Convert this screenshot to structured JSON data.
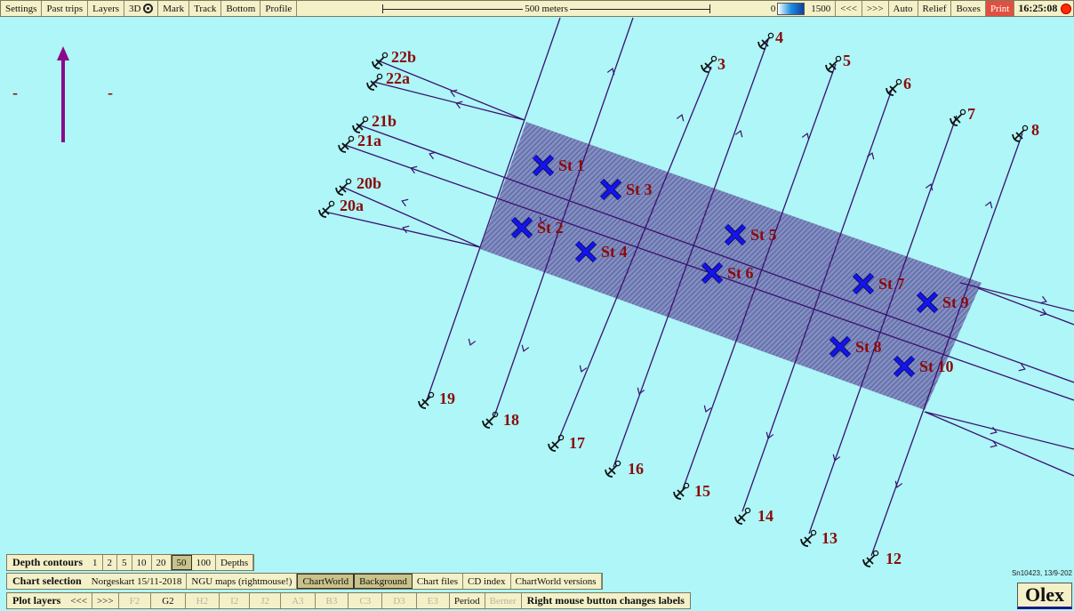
{
  "toolbar": {
    "buttons": [
      "Settings",
      "Past trips",
      "Layers",
      "3D",
      "Mark",
      "Track",
      "Bottom",
      "Profile"
    ],
    "scale_label": "500 meters",
    "depth_scale_min": "0",
    "depth_scale_max": "1500",
    "nav_prev": "<<<",
    "nav_next": ">>>",
    "auto": "Auto",
    "relief": "Relief",
    "boxes": "Boxes",
    "print": "Print",
    "clock": "16:25:08"
  },
  "depth_contours": {
    "label": "Depth contours",
    "values": [
      "1",
      "2",
      "5",
      "10",
      "20",
      "50",
      "100"
    ],
    "active": "50",
    "depths_button": "Depths"
  },
  "chart_selection": {
    "label": "Chart selection",
    "items": [
      "Norgeskart 15/11-2018",
      "NGU maps (rightmouse!)",
      "ChartWorld",
      "Background",
      "Chart files",
      "CD index",
      "ChartWorld versions"
    ],
    "active": [
      "ChartWorld",
      "Background"
    ]
  },
  "plot_layers": {
    "label": "Plot layers",
    "nav_prev": "<<<",
    "nav_next": ">>>",
    "items": [
      "F2",
      "G2",
      "H2",
      "I2",
      "J2",
      "A3",
      "B3",
      "C3",
      "D3",
      "E3"
    ],
    "period": "Period",
    "berner": "Berner",
    "hint": "Right mouse button changes labels"
  },
  "map": {
    "stations": [
      {
        "label": "St 1"
      },
      {
        "label": "St 2"
      },
      {
        "label": "St 3"
      },
      {
        "label": "St 4"
      },
      {
        "label": "St 5"
      },
      {
        "label": "St 6"
      },
      {
        "label": "St 7"
      },
      {
        "label": "St 8"
      },
      {
        "label": "St 9"
      },
      {
        "label": "St 10"
      }
    ],
    "anchors": [
      {
        "label": "22b"
      },
      {
        "label": "22a"
      },
      {
        "label": "21b"
      },
      {
        "label": "21a"
      },
      {
        "label": "20b"
      },
      {
        "label": "20a"
      },
      {
        "label": "3"
      },
      {
        "label": "4"
      },
      {
        "label": "5"
      },
      {
        "label": "6"
      },
      {
        "label": "7"
      },
      {
        "label": "8"
      },
      {
        "label": "19"
      },
      {
        "label": "18"
      },
      {
        "label": "17"
      },
      {
        "label": "16"
      },
      {
        "label": "15"
      },
      {
        "label": "14"
      },
      {
        "label": "13"
      },
      {
        "label": "12"
      }
    ],
    "north_marks": [
      "-",
      "-"
    ],
    "colors": {
      "sea": "#aef6f7",
      "track": "#3a1070",
      "area": "#5a5a98",
      "station": "#1010e0",
      "label": "#8b0a0a",
      "arrow": "#8b0a8b"
    }
  },
  "footer": {
    "version_note": "Sn10423, 13/9-202",
    "logo": "Olex"
  }
}
